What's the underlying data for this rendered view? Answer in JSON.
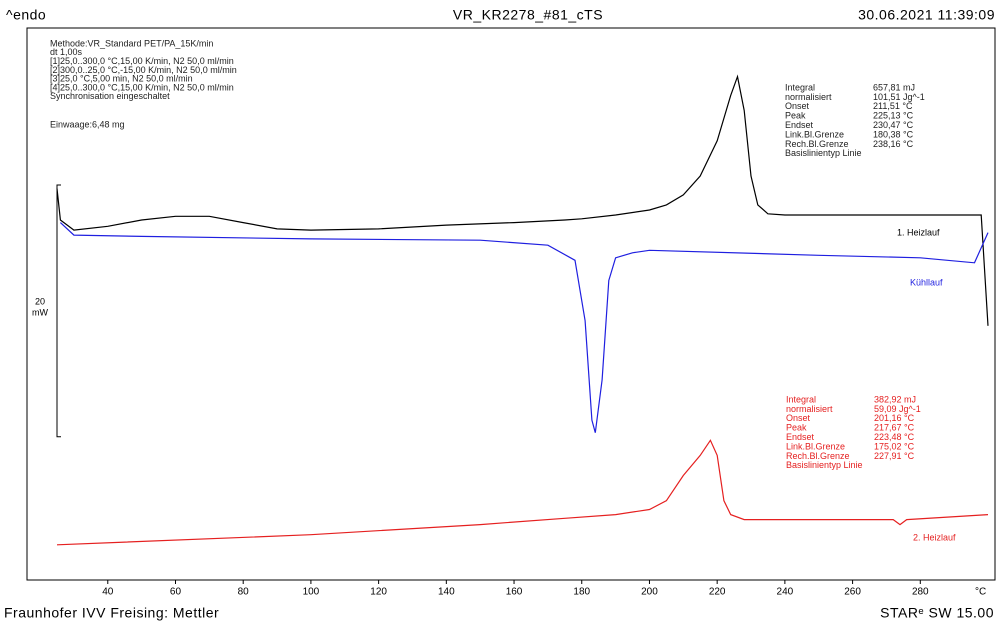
{
  "chart_data": {
    "type": "line",
    "header_left": "^endo",
    "title": "VR_KR2278_#81_cTS",
    "date": "30.06.2021 11:39:09",
    "footer_left": "Fraunhofer IVV Freising: Mettler",
    "footer_right": "STARᵉ SW 15.00",
    "method": [
      "Methode:VR_Standard PET/PA_15K/min",
      "dt 1,00s",
      "[1]25,0..300,0 °C,15,00 K/min, N2 50,0 ml/min",
      "[2]300,0..25,0 °C,-15,00 K/min, N2 50,0 ml/min",
      "[3]25,0 °C,5,00 min,        N2 50,0 ml/min",
      "[4]25,0..300,0 °C,15,00 K/min, N2 50,0 ml/min",
      "Synchronisation eingeschaltet",
      "Einwaage:6,48 mg"
    ],
    "x_label": "°C",
    "scale_bar": {
      "value": 20,
      "label": "20",
      "unit": "mW"
    },
    "xlim": [
      25,
      300
    ],
    "ylim": [
      0,
      43.7
    ],
    "xticks": [
      40,
      60,
      80,
      100,
      120,
      140,
      160,
      180,
      200,
      220,
      240,
      260,
      280
    ],
    "series": [
      {
        "name": "1. Heizlauf",
        "color": "#000000",
        "x": [
          25,
          26,
          30,
          40,
          50,
          60,
          70,
          80,
          90,
          100,
          120,
          140,
          160,
          175,
          180,
          190,
          200,
          205,
          210,
          215,
          220,
          224,
          226,
          228,
          230,
          232,
          235,
          240,
          260,
          280,
          298,
          300
        ],
        "values": [
          31.1,
          28.6,
          27.8,
          28.1,
          28.6,
          28.9,
          28.9,
          28.4,
          27.9,
          27.8,
          27.9,
          28.2,
          28.4,
          28.6,
          28.7,
          29.0,
          29.4,
          29.8,
          30.6,
          32.1,
          34.9,
          38.5,
          40.0,
          37.3,
          32.1,
          29.8,
          29.1,
          29.0,
          29.0,
          29.0,
          29.0,
          20.2
        ],
        "annotation": [
          [
            "Integral",
            "657,81 mJ"
          ],
          [
            " normalisiert",
            "101,51 Jg^-1"
          ],
          [
            "Onset",
            "211,51 °C"
          ],
          [
            "Peak",
            "225,13 °C"
          ],
          [
            "Endset",
            "230,47 °C"
          ],
          [
            "Link.Bl.Grenze",
            "180,38 °C"
          ],
          [
            "Rech.Bl.Grenze",
            "238,16 °C"
          ],
          [
            "Basislinientyp Linie",
            ""
          ]
        ]
      },
      {
        "name": "Kühllauf",
        "color": "#1f1fe0",
        "x": [
          26,
          30,
          50,
          100,
          150,
          170,
          178,
          181,
          183,
          184,
          186,
          188,
          190,
          195,
          200,
          250,
          280,
          296,
          300
        ],
        "values": [
          28.4,
          27.4,
          27.3,
          27.1,
          27.0,
          26.6,
          25.4,
          20.6,
          12.7,
          11.7,
          15.9,
          23.8,
          25.6,
          26.0,
          26.2,
          25.8,
          25.6,
          25.2,
          27.6
        ]
      },
      {
        "name": "2. Heizlauf",
        "color": "#e52020",
        "x": [
          25,
          100,
          150,
          175,
          190,
          200,
          205,
          210,
          215,
          218,
          220,
          222,
          224,
          228,
          260,
          272,
          274,
          276,
          300
        ],
        "values": [
          2.8,
          3.6,
          4.4,
          4.9,
          5.2,
          5.6,
          6.3,
          8.3,
          9.9,
          11.1,
          9.9,
          6.3,
          5.2,
          4.8,
          4.8,
          4.8,
          4.4,
          4.8,
          5.2
        ],
        "annotation": [
          [
            "Integral",
            "382,92 mJ"
          ],
          [
            " normalisiert",
            "59,09 Jg^-1"
          ],
          [
            "Onset",
            "201,16 °C"
          ],
          [
            "Peak",
            "217,67 °C"
          ],
          [
            "Endset",
            "223,48 °C"
          ],
          [
            "Link.Bl.Grenze",
            "175,02 °C"
          ],
          [
            "Rech.Bl.Grenze",
            "227,91 °C"
          ],
          [
            "Basislinientyp Linie",
            ""
          ]
        ]
      }
    ]
  }
}
